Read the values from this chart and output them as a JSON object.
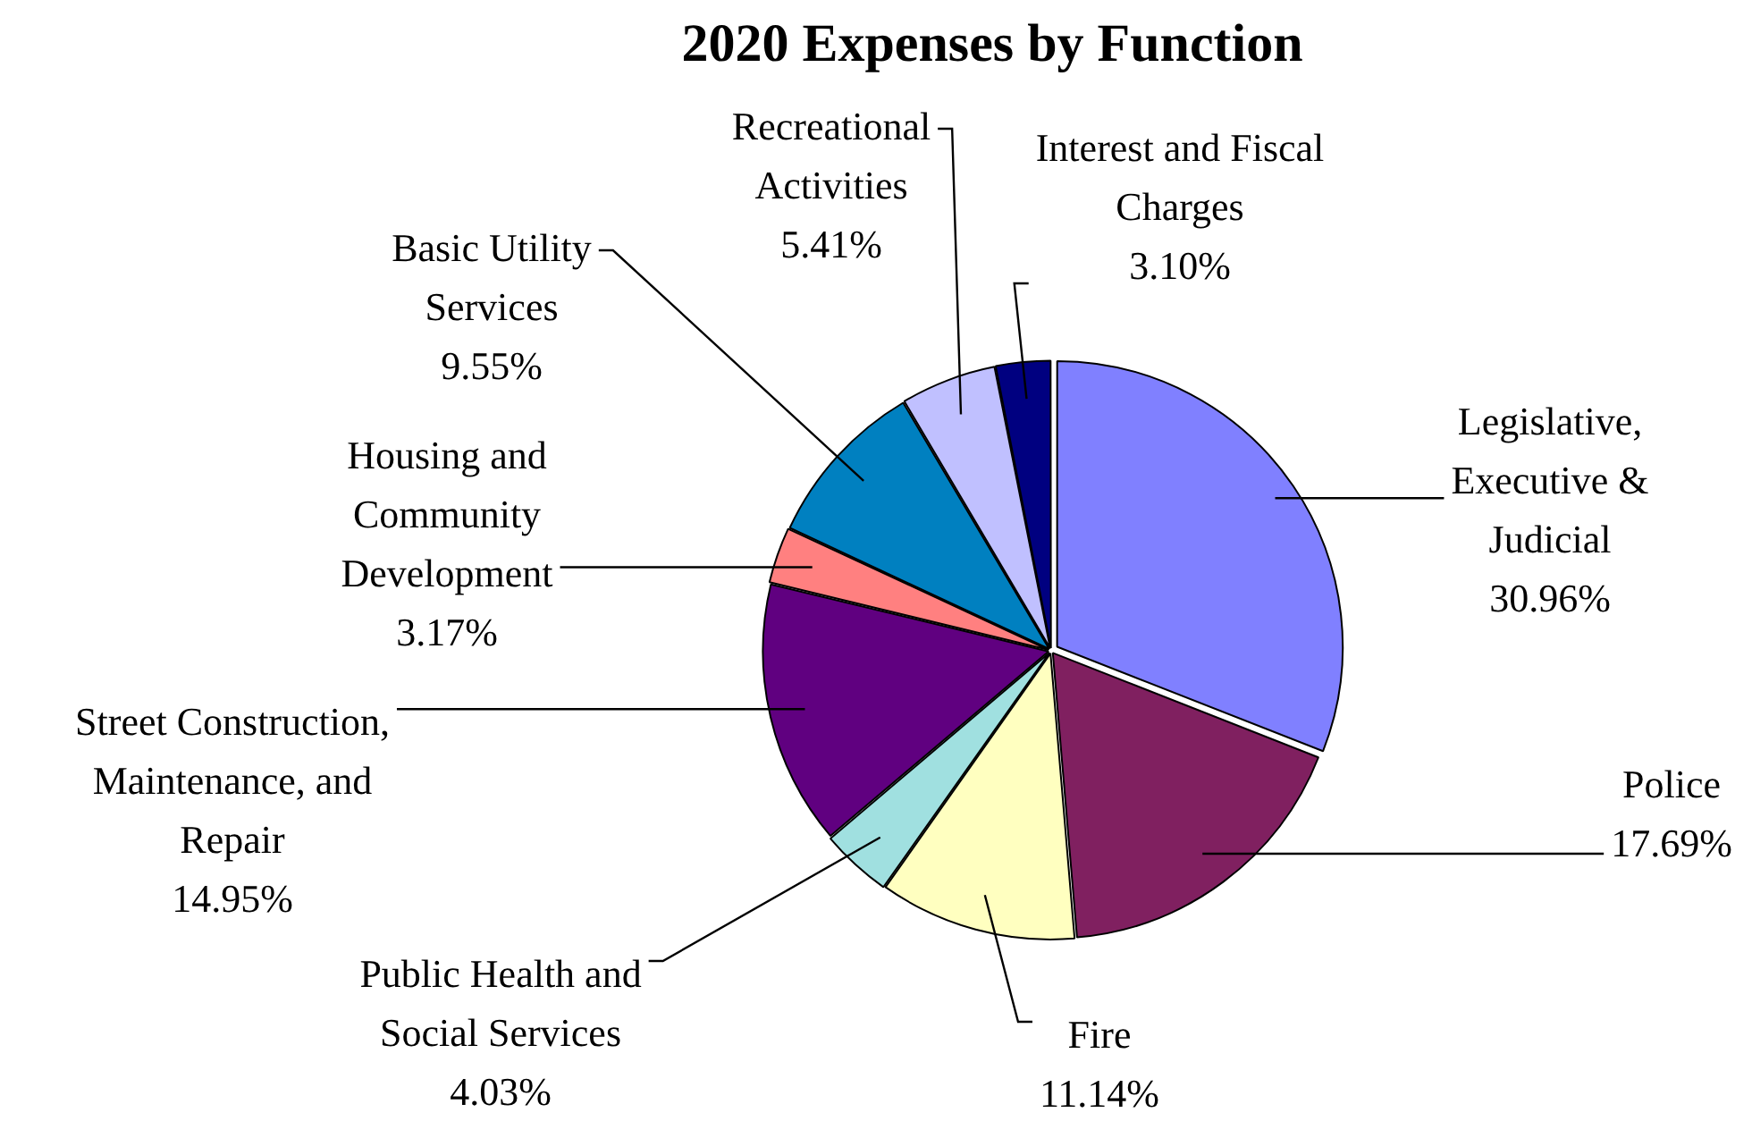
{
  "chart_data": {
    "type": "pie",
    "title": "2020 Expenses by Function",
    "categories": [
      "Legislative,\nExecutive &\nJudicial",
      "Police",
      "Fire",
      "Public Health and\nSocial Services",
      "Street Construction,\nMaintenance, and\nRepair",
      "Housing and\nCommunity\nDevelopment",
      "Basic Utility\nServices",
      "Recreational\nActivities",
      "Interest and Fiscal\nCharges"
    ],
    "values": [
      30.96,
      17.69,
      11.14,
      4.03,
      14.95,
      3.17,
      9.55,
      5.41,
      3.1
    ],
    "value_labels": [
      "30.96%",
      "17.69%",
      "11.14%",
      "4.03%",
      "14.95%",
      "3.17%",
      "9.55%",
      "5.41%",
      "3.10%"
    ],
    "colors": [
      "#8080ff",
      "#802060",
      "#ffffc0",
      "#a0e0e0",
      "#600080",
      "#ff8080",
      "#0080c0",
      "#c0c0ff",
      "#000080"
    ],
    "legend": false
  }
}
